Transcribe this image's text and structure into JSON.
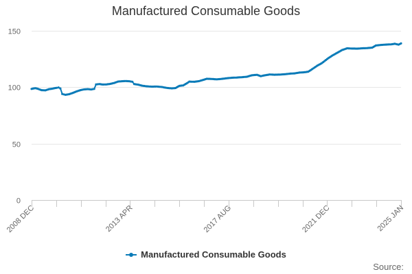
{
  "chart_data": {
    "type": "line",
    "title": "Manufactured Consumable Goods",
    "xlabel": "",
    "ylabel": "",
    "ylim": [
      0,
      150
    ],
    "y_ticks": [
      0,
      50,
      100,
      150
    ],
    "x_tick_labels": [
      "2008 DEC",
      "2013 APR",
      "2017 AUG",
      "2021 DEC",
      "2025 JAN"
    ],
    "x_range": [
      "2008 DEC",
      "2025 JAN"
    ],
    "grid": "horizontal",
    "legend_position": "bottom-center",
    "source_label": "Source:",
    "series": [
      {
        "name": "Manufactured Consumable Goods",
        "color": "#0a7bb8",
        "points": [
          [
            0,
            98.5
          ],
          [
            0.3,
            99.2
          ],
          [
            0.5,
            98.6
          ],
          [
            0.8,
            97.4
          ],
          [
            1.1,
            97.2
          ],
          [
            1.4,
            98.3
          ],
          [
            1.7,
            98.8
          ],
          [
            2.0,
            99.5
          ],
          [
            2.15,
            99.8
          ],
          [
            2.3,
            98.9
          ],
          [
            2.45,
            94.0
          ],
          [
            2.7,
            93.3
          ],
          [
            3.0,
            93.8
          ],
          [
            3.3,
            95.0
          ],
          [
            3.6,
            96.3
          ],
          [
            3.9,
            97.4
          ],
          [
            4.2,
            98.1
          ],
          [
            4.5,
            98.3
          ],
          [
            4.75,
            98.0
          ],
          [
            5.0,
            98.5
          ],
          [
            5.15,
            102.5
          ],
          [
            5.4,
            102.8
          ],
          [
            5.7,
            102.4
          ],
          [
            6.0,
            102.5
          ],
          [
            6.3,
            103.0
          ],
          [
            6.6,
            103.8
          ],
          [
            6.9,
            105.0
          ],
          [
            7.2,
            105.3
          ],
          [
            7.5,
            105.5
          ],
          [
            7.8,
            105.3
          ],
          [
            8.05,
            104.8
          ],
          [
            8.2,
            102.8
          ],
          [
            8.5,
            102.3
          ],
          [
            8.8,
            101.4
          ],
          [
            9.2,
            100.8
          ],
          [
            9.6,
            100.5
          ],
          [
            10.0,
            100.6
          ],
          [
            10.4,
            100.2
          ],
          [
            10.8,
            99.4
          ],
          [
            11.2,
            99.0
          ],
          [
            11.5,
            99.3
          ],
          [
            11.8,
            101.2
          ],
          [
            12.1,
            101.6
          ],
          [
            12.4,
            103.5
          ],
          [
            12.6,
            105.0
          ],
          [
            13.0,
            104.8
          ],
          [
            13.4,
            105.5
          ],
          [
            13.7,
            106.5
          ],
          [
            14.0,
            107.5
          ],
          [
            14.4,
            107.3
          ],
          [
            14.8,
            107.0
          ],
          [
            15.2,
            107.4
          ],
          [
            15.6,
            108.0
          ],
          [
            16.0,
            108.4
          ],
          [
            16.4,
            108.6
          ],
          [
            16.8,
            108.9
          ],
          [
            17.2,
            109.3
          ],
          [
            17.6,
            110.6
          ],
          [
            18.0,
            111.0
          ],
          [
            18.3,
            109.8
          ],
          [
            18.6,
            110.5
          ],
          [
            19.0,
            111.3
          ],
          [
            19.4,
            111.1
          ],
          [
            19.8,
            111.2
          ],
          [
            20.2,
            111.5
          ],
          [
            20.6,
            112.0
          ],
          [
            21.0,
            112.3
          ],
          [
            21.4,
            113.0
          ],
          [
            21.8,
            113.3
          ],
          [
            22.1,
            113.8
          ],
          [
            22.4,
            116.0
          ],
          [
            22.8,
            119.0
          ],
          [
            23.2,
            121.5
          ],
          [
            23.6,
            125.0
          ],
          [
            24.0,
            128.0
          ],
          [
            24.4,
            130.5
          ],
          [
            24.8,
            133.0
          ],
          [
            25.2,
            134.5
          ],
          [
            25.6,
            134.3
          ],
          [
            26.0,
            134.2
          ],
          [
            26.4,
            134.5
          ],
          [
            26.8,
            134.7
          ],
          [
            27.2,
            135.1
          ],
          [
            27.5,
            137.0
          ],
          [
            27.9,
            137.5
          ],
          [
            28.3,
            137.8
          ],
          [
            28.7,
            138.0
          ],
          [
            29.0,
            138.5
          ],
          [
            29.3,
            137.8
          ],
          [
            29.5,
            138.8
          ]
        ]
      }
    ]
  }
}
